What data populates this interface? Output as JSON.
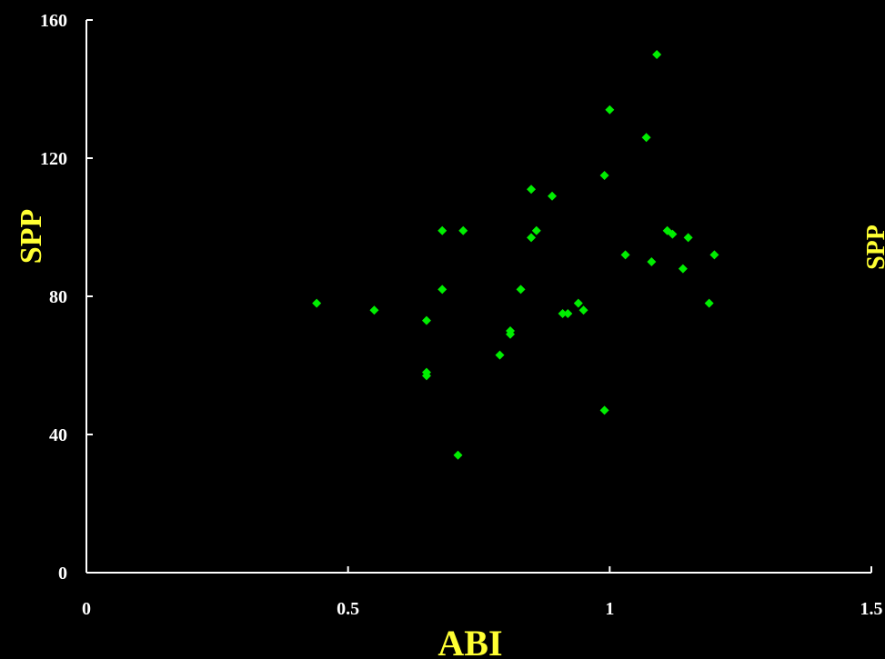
{
  "chart_data": {
    "type": "scatter",
    "title": "",
    "xlabel": "ABI",
    "ylabel": "SPP",
    "secondary_ylabel": "SPP",
    "xlim": [
      0,
      1.5
    ],
    "ylim": [
      0,
      160
    ],
    "x_ticks": [
      "0",
      "0.5",
      "1",
      "1.5"
    ],
    "y_ticks": [
      "0",
      "40",
      "80",
      "120",
      "160"
    ],
    "grid": false,
    "legend": "none",
    "marker": "diamond",
    "marker_color": "#00ee00",
    "colors": {
      "background": "#000000",
      "axis": "#ffffff",
      "axis_title": "#ffff33"
    },
    "series": [
      {
        "x": [
          0.44,
          0.55,
          0.65,
          0.65,
          0.65,
          0.68,
          0.68,
          0.71,
          0.72,
          0.79,
          0.81,
          0.81,
          0.83,
          0.85,
          0.85,
          0.86,
          0.89,
          0.91,
          0.92,
          0.94,
          0.95,
          0.99,
          0.99,
          1.0,
          1.03,
          1.07,
          1.08,
          1.09,
          1.11,
          1.12,
          1.14,
          1.15,
          1.19,
          1.2
        ],
        "y": [
          78,
          76,
          73,
          58,
          57,
          99,
          82,
          34,
          99,
          63,
          70,
          69,
          82,
          111,
          97,
          99,
          109,
          75,
          75,
          78,
          76,
          115,
          47,
          134,
          92,
          126,
          90,
          150,
          99,
          98,
          88,
          97,
          78,
          92
        ]
      }
    ]
  }
}
